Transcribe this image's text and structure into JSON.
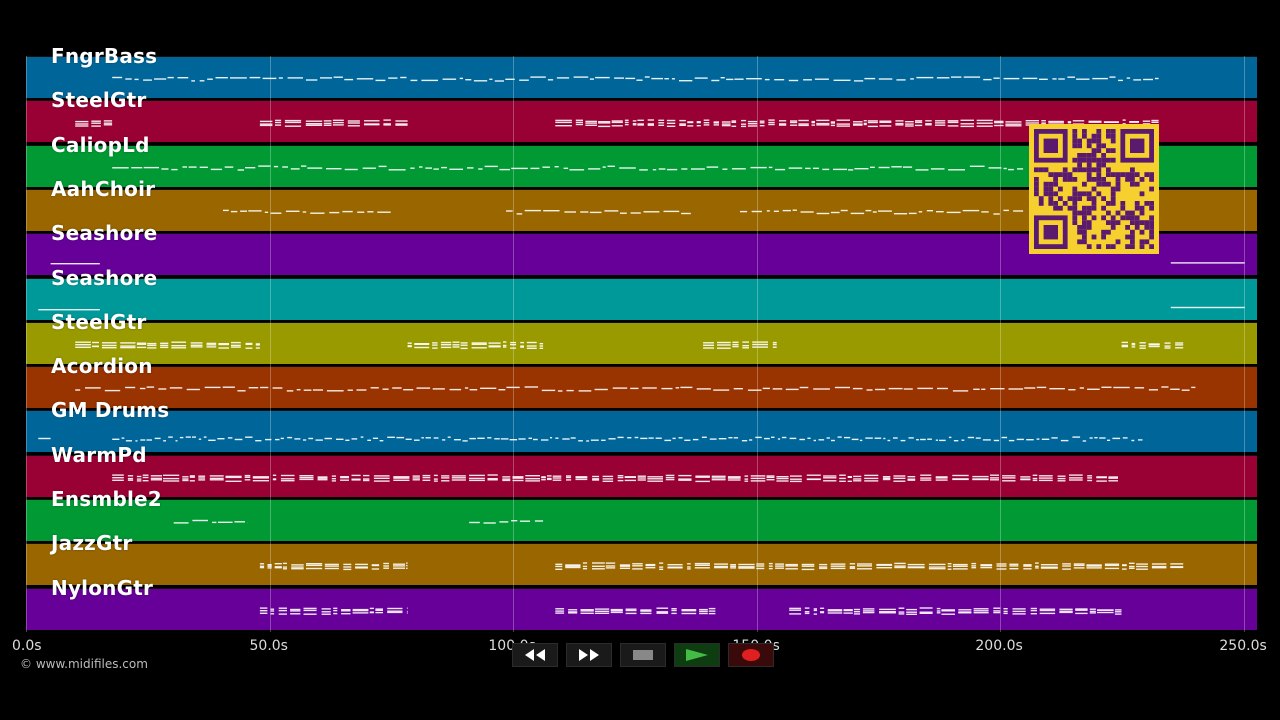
{
  "tracks": [
    {
      "name": "FngrBass",
      "color": "#006699"
    },
    {
      "name": "SteelGtr",
      "color": "#990033"
    },
    {
      "name": "CaliopLd",
      "color": "#009933"
    },
    {
      "name": "AahChoir",
      "color": "#996600"
    },
    {
      "name": "Seashore",
      "color": "#660099"
    },
    {
      "name": "Seashore",
      "color": "#009999"
    },
    {
      "name": "SteelGtr",
      "color": "#999900"
    },
    {
      "name": "Acordion",
      "color": "#993300"
    },
    {
      "name": "GM Drums",
      "color": "#006699"
    },
    {
      "name": "WarmPd",
      "color": "#990033"
    },
    {
      "name": "Ensmble2",
      "color": "#009933"
    },
    {
      "name": "JazzGtr",
      "color": "#996600"
    },
    {
      "name": "NylonGtr",
      "color": "#660099"
    }
  ],
  "timeline": {
    "ticks": [
      "0.0s",
      "50.0s",
      "100.0s",
      "150.0s",
      "200.0s",
      "250.0s"
    ]
  },
  "copyright": "© www.midifiles.com",
  "controls": [
    {
      "name": "rewind-button",
      "icon": "rewind-icon"
    },
    {
      "name": "fast-forward-button",
      "icon": "fast-forward-icon"
    },
    {
      "name": "stop-button",
      "icon": "stop-icon"
    },
    {
      "name": "play-button",
      "icon": "play-icon"
    },
    {
      "name": "record-button",
      "icon": "record-icon"
    }
  ],
  "qr_code": {
    "icon": "qr-code-icon",
    "color": "#f6d02f"
  }
}
